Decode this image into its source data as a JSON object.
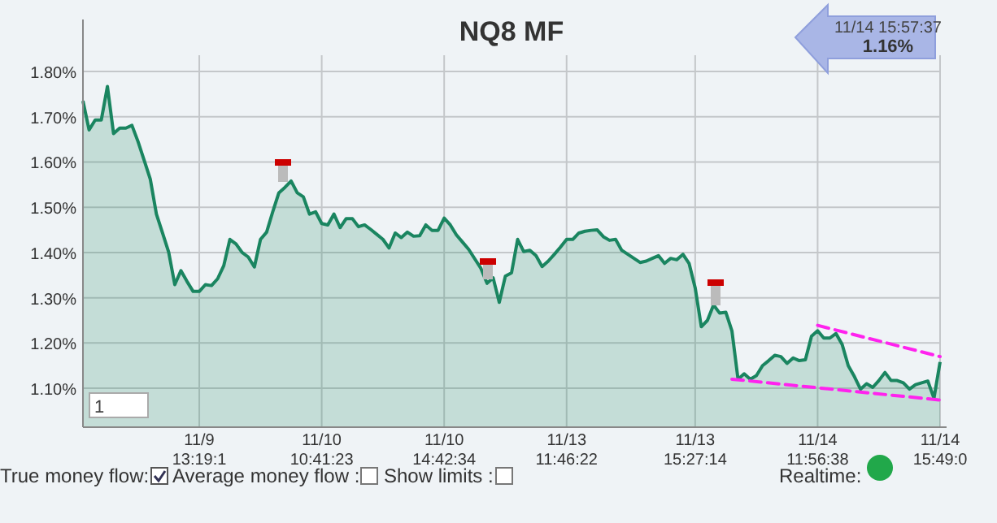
{
  "chart_data": {
    "type": "area",
    "title": "NQ8 MF",
    "categories": [
      null,
      null,
      null,
      null,
      null,
      null,
      null,
      null,
      null,
      null,
      null,
      null,
      null,
      null,
      null,
      null,
      null,
      null,
      null,
      "11/9\n13:19:1",
      null,
      null,
      null,
      null,
      null,
      null,
      null,
      null,
      null,
      null,
      null,
      null,
      null,
      null,
      null,
      null,
      null,
      null,
      null,
      "11/10\n10:41:23",
      null,
      null,
      null,
      null,
      null,
      null,
      null,
      null,
      null,
      null,
      null,
      null,
      null,
      null,
      null,
      null,
      null,
      null,
      null,
      "11/10\n14:42:34",
      null,
      null,
      null,
      null,
      null,
      null,
      null,
      null,
      null,
      null,
      null,
      null,
      null,
      null,
      null,
      null,
      null,
      null,
      null,
      "11/13\n11:46:22",
      null,
      null,
      null,
      null,
      null,
      null,
      null,
      null,
      null,
      null,
      null,
      null,
      null,
      null,
      null,
      null,
      null,
      null,
      null,
      null,
      "11/13\n15:27:14",
      null,
      null,
      null,
      null,
      null,
      null,
      null,
      null,
      null,
      null,
      null,
      null,
      null,
      null,
      null,
      null,
      null,
      null,
      null,
      "11/14\n11:56:38",
      null,
      null,
      null,
      null,
      null,
      null,
      null,
      null,
      null,
      null,
      null,
      null,
      null,
      null,
      null,
      null,
      null,
      null,
      null,
      "11/14\n15:49:0"
    ],
    "series": [
      {
        "color": "#1a8560",
        "values": [
          1.735,
          1.671,
          1.693,
          1.693,
          1.767,
          1.663,
          1.675,
          1.675,
          1.681,
          1.645,
          1.604,
          1.562,
          1.485,
          1.443,
          1.401,
          1.329,
          1.36,
          1.336,
          1.314,
          1.314,
          1.329,
          1.327,
          1.342,
          1.371,
          1.429,
          1.419,
          1.4,
          1.39,
          1.368,
          1.429,
          1.445,
          1.49,
          1.532,
          1.544,
          1.558,
          1.532,
          1.523,
          1.485,
          1.49,
          1.464,
          1.461,
          1.485,
          1.455,
          1.475,
          1.475,
          1.457,
          1.461,
          1.451,
          1.44,
          1.429,
          1.41,
          1.443,
          1.433,
          1.445,
          1.436,
          1.437,
          1.461,
          1.449,
          1.449,
          1.476,
          1.461,
          1.439,
          1.423,
          1.407,
          1.386,
          1.365,
          1.332,
          1.344,
          1.29,
          1.348,
          1.355,
          1.429,
          1.402,
          1.405,
          1.393,
          1.369,
          1.381,
          1.396,
          1.412,
          1.429,
          1.429,
          1.443,
          1.447,
          1.449,
          1.45,
          1.435,
          1.427,
          1.429,
          1.405,
          1.396,
          1.387,
          1.378,
          1.381,
          1.387,
          1.393,
          1.376,
          1.387,
          1.384,
          1.396,
          1.376,
          1.322,
          1.236,
          1.25,
          1.284,
          1.266,
          1.268,
          1.227,
          1.12,
          1.132,
          1.12,
          1.128,
          1.15,
          1.161,
          1.173,
          1.17,
          1.155,
          1.167,
          1.161,
          1.163,
          1.215,
          1.227,
          1.211,
          1.211,
          1.221,
          1.197,
          1.15,
          1.126,
          1.098,
          1.11,
          1.102,
          1.117,
          1.135,
          1.117,
          1.117,
          1.112,
          1.098,
          1.108,
          1.112,
          1.116,
          1.078,
          1.158
        ]
      },
      {
        "type": "line",
        "line_style": "dashed",
        "color": "#ff22ee",
        "values": [
          null,
          null,
          null,
          null,
          null,
          null,
          null,
          null,
          null,
          null,
          null,
          null,
          null,
          null,
          null,
          null,
          null,
          null,
          null,
          null,
          null,
          null,
          null,
          null,
          null,
          null,
          null,
          null,
          null,
          null,
          null,
          null,
          null,
          null,
          null,
          null,
          null,
          null,
          null,
          null,
          null,
          null,
          null,
          null,
          null,
          null,
          null,
          null,
          null,
          null,
          null,
          null,
          null,
          null,
          null,
          null,
          null,
          null,
          null,
          null,
          null,
          null,
          null,
          null,
          null,
          null,
          null,
          null,
          null,
          null,
          null,
          null,
          null,
          null,
          null,
          null,
          null,
          null,
          null,
          null,
          null,
          null,
          null,
          null,
          null,
          null,
          null,
          null,
          null,
          null,
          null,
          null,
          null,
          null,
          null,
          null,
          null,
          null,
          null,
          null,
          null,
          null,
          null,
          null,
          null,
          null,
          null,
          null,
          null,
          null,
          null,
          null,
          null,
          null,
          null,
          null,
          null,
          null,
          null,
          null,
          1.239,
          null,
          null,
          null,
          null,
          null,
          null,
          null,
          null,
          null,
          null,
          null,
          null,
          null,
          null,
          null,
          null,
          null,
          null,
          null,
          1.17
        ]
      },
      {
        "type": "line",
        "line_style": "dashed",
        "color": "#ff22ee",
        "values": [
          null,
          null,
          null,
          null,
          null,
          null,
          null,
          null,
          null,
          null,
          null,
          null,
          null,
          null,
          null,
          null,
          null,
          null,
          null,
          null,
          null,
          null,
          null,
          null,
          null,
          null,
          null,
          null,
          null,
          null,
          null,
          null,
          null,
          null,
          null,
          null,
          null,
          null,
          null,
          null,
          null,
          null,
          null,
          null,
          null,
          null,
          null,
          null,
          null,
          null,
          null,
          null,
          null,
          null,
          null,
          null,
          null,
          null,
          null,
          null,
          null,
          null,
          null,
          null,
          null,
          null,
          null,
          null,
          null,
          null,
          null,
          null,
          null,
          null,
          null,
          null,
          null,
          null,
          null,
          null,
          null,
          null,
          null,
          null,
          null,
          null,
          null,
          null,
          null,
          null,
          null,
          null,
          null,
          null,
          null,
          null,
          null,
          null,
          null,
          null,
          null,
          null,
          null,
          null,
          null,
          null,
          1.12,
          null,
          null,
          null,
          null,
          null,
          null,
          null,
          null,
          null,
          null,
          null,
          null,
          null,
          null,
          null,
          null,
          null,
          null,
          null,
          null,
          null,
          null,
          null,
          null,
          null,
          null,
          null,
          null,
          null,
          null,
          null,
          null,
          null,
          1.074
        ]
      }
    ],
    "ylim": [
      1.014,
      1.836
    ],
    "yticks": [
      {
        "value": 1.1,
        "label": "1.10%"
      },
      {
        "value": 1.2,
        "label": "1.20%"
      },
      {
        "value": 1.3,
        "label": "1.30%"
      },
      {
        "value": 1.4,
        "label": "1.40%"
      },
      {
        "value": 1.5,
        "label": "1.50%"
      },
      {
        "value": 1.6,
        "label": "1.60%"
      },
      {
        "value": 1.7,
        "label": "1.70%"
      },
      {
        "value": 1.8,
        "label": "1.80%"
      }
    ],
    "grid": true,
    "annotations": [
      "11/14 15:57:37",
      "1.16%",
      "1",
      "True money flow:",
      "Average money flow :",
      "Show limits :",
      "Realtime:"
    ]
  }
}
